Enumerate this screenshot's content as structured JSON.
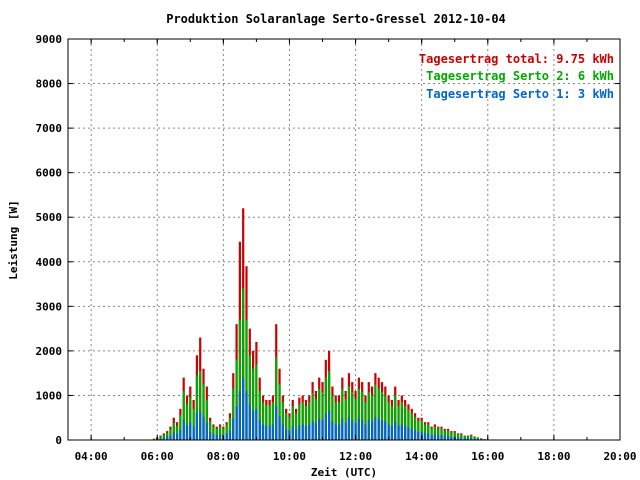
{
  "chart_data": {
    "type": "bar",
    "title": "Produktion Solaranlage Serto-Gressel 2012-10-04",
    "xlabel": "Zeit (UTC)",
    "ylabel": "Leistung [W]",
    "xlim": [
      3.3,
      20.0
    ],
    "ylim": [
      0,
      9000
    ],
    "x_ticks": [
      "04:00",
      "06:00",
      "08:00",
      "10:00",
      "12:00",
      "14:00",
      "16:00",
      "18:00",
      "20:00"
    ],
    "y_ticks": [
      "0",
      "1000",
      "2000",
      "3000",
      "4000",
      "5000",
      "6000",
      "7000",
      "8000",
      "9000"
    ],
    "grid": true,
    "legend_position": "top-right",
    "series": [
      {
        "name": "Tagesertrag total: 9.75 kWh",
        "color": "#cc0000"
      },
      {
        "name": "Tagesertrag Serto 2: 6 kWh",
        "color": "#00aa00"
      },
      {
        "name": "Tagesertrag Serto 1: 3 kWh",
        "color": "#0066cc"
      }
    ],
    "x_hours": [
      5.9,
      6.0,
      6.1,
      6.2,
      6.3,
      6.4,
      6.5,
      6.6,
      6.7,
      6.8,
      6.9,
      7.0,
      7.1,
      7.2,
      7.3,
      7.4,
      7.5,
      7.6,
      7.7,
      7.8,
      7.9,
      8.0,
      8.1,
      8.2,
      8.3,
      8.4,
      8.5,
      8.6,
      8.7,
      8.8,
      8.9,
      9.0,
      9.1,
      9.2,
      9.3,
      9.4,
      9.5,
      9.6,
      9.7,
      9.8,
      9.9,
      10.0,
      10.1,
      10.2,
      10.3,
      10.4,
      10.5,
      10.6,
      10.7,
      10.8,
      10.9,
      11.0,
      11.1,
      11.2,
      11.3,
      11.4,
      11.5,
      11.6,
      11.7,
      11.8,
      11.9,
      12.0,
      12.1,
      12.2,
      12.3,
      12.4,
      12.5,
      12.6,
      12.7,
      12.8,
      12.9,
      13.0,
      13.1,
      13.2,
      13.3,
      13.4,
      13.5,
      13.6,
      13.7,
      13.8,
      13.9,
      14.0,
      14.1,
      14.2,
      14.3,
      14.4,
      14.5,
      14.6,
      14.7,
      14.8,
      14.9,
      15.0,
      15.1,
      15.2,
      15.3,
      15.4,
      15.5,
      15.6,
      15.7,
      15.8,
      15.9,
      16.0,
      16.1,
      16.2,
      16.3
    ],
    "total": [
      30,
      60,
      100,
      150,
      200,
      300,
      500,
      400,
      700,
      1400,
      1000,
      1200,
      900,
      1900,
      2300,
      1600,
      1200,
      500,
      350,
      300,
      350,
      300,
      400,
      600,
      1500,
      2600,
      4450,
      5200,
      3900,
      2500,
      2000,
      2200,
      1400,
      1000,
      900,
      900,
      1000,
      2600,
      1600,
      1000,
      700,
      600,
      900,
      700,
      950,
      1000,
      900,
      1000,
      1300,
      1100,
      1400,
      1300,
      1800,
      2000,
      1200,
      1000,
      1000,
      1400,
      1100,
      1500,
      1300,
      1100,
      1400,
      1300,
      1000,
      1300,
      1200,
      1500,
      1400,
      1300,
      1200,
      1000,
      900,
      1200,
      900,
      1000,
      900,
      800,
      700,
      600,
      500,
      500,
      400,
      400,
      300,
      350,
      300,
      300,
      250,
      250,
      200,
      200,
      150,
      150,
      100,
      100,
      120,
      80,
      60,
      40,
      20,
      10,
      5
    ],
    "serto2_cumulative": [
      25,
      50,
      80,
      120,
      160,
      240,
      380,
      320,
      560,
      1100,
      800,
      950,
      700,
      1450,
      1550,
      1250,
      900,
      420,
      300,
      260,
      300,
      260,
      350,
      500,
      1150,
      1800,
      2700,
      3400,
      2700,
      1900,
      1600,
      1700,
      1100,
      850,
      780,
      780,
      850,
      1850,
      1250,
      850,
      600,
      520,
      760,
      600,
      800,
      850,
      760,
      850,
      1050,
      920,
      1150,
      1080,
      1400,
      1550,
      1000,
      850,
      850,
      1150,
      920,
      1200,
      1080,
      920,
      1150,
      1080,
      850,
      1080,
      1000,
      1250,
      1150,
      1080,
      1000,
      850,
      760,
      1000,
      760,
      850,
      760,
      680,
      600,
      520,
      430,
      430,
      350,
      350,
      260,
      300,
      260,
      260,
      210,
      210,
      170,
      170,
      130,
      130,
      90,
      90,
      100,
      70,
      50,
      35,
      18,
      8,
      4
    ],
    "serto1": [
      10,
      20,
      30,
      50,
      70,
      100,
      170,
      140,
      230,
      450,
      330,
      400,
      300,
      600,
      650,
      520,
      380,
      180,
      130,
      110,
      130,
      110,
      150,
      210,
      480,
      750,
      1100,
      1400,
      1100,
      800,
      650,
      700,
      450,
      350,
      320,
      320,
      350,
      760,
      520,
      350,
      250,
      220,
      320,
      250,
      330,
      350,
      320,
      350,
      430,
      380,
      480,
      450,
      580,
      650,
      420,
      350,
      350,
      480,
      380,
      500,
      450,
      380,
      480,
      450,
      350,
      450,
      420,
      520,
      480,
      450,
      420,
      350,
      320,
      420,
      320,
      350,
      320,
      280,
      250,
      220,
      180,
      180,
      150,
      150,
      110,
      130,
      110,
      110,
      90,
      90,
      70,
      70,
      55,
      55,
      40,
      40,
      45,
      30,
      22,
      15,
      8,
      4,
      2
    ]
  }
}
